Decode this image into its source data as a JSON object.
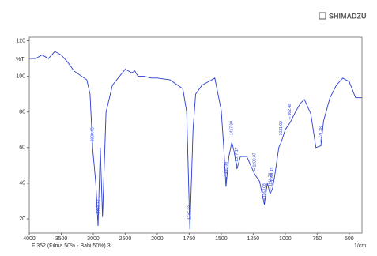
{
  "chart_data": {
    "type": "line",
    "brand": "SHIMADZU",
    "y_label": "%T",
    "x_label": "1/cm",
    "caption": "F 352 (Filma 50% - Babi 50%) 3",
    "xlim": [
      4000,
      400
    ],
    "ylim": [
      12,
      122
    ],
    "xticks": [
      4000,
      3500,
      3000,
      2500,
      2000,
      1750,
      1500,
      1250,
      1000,
      750,
      500
    ],
    "yticks": [
      20,
      40,
      60,
      80,
      100,
      120
    ],
    "series": [
      {
        "name": "F 352 (Filma 50% - Babi 50%) 3",
        "color": "#2a3cd0",
        "x": [
          4000,
          3900,
          3800,
          3700,
          3600,
          3500,
          3400,
          3300,
          3100,
          3050,
          3008,
          2960,
          2925,
          2890,
          2855,
          2800,
          2700,
          2500,
          2400,
          2350,
          2300,
          2200,
          2100,
          2000,
          1900,
          1800,
          1770,
          1745,
          1720,
          1700,
          1650,
          1600,
          1550,
          1500,
          1480,
          1463,
          1440,
          1417,
          1400,
          1377,
          1350,
          1300,
          1270,
          1238,
          1200,
          1163,
          1140,
          1118,
          1099,
          1080,
          1050,
          1031,
          1000,
          962,
          920,
          880,
          850,
          800,
          760,
          721,
          700,
          650,
          600,
          550,
          500,
          450,
          400
        ],
        "values": [
          110,
          110,
          112,
          110,
          114,
          112,
          108,
          103,
          98,
          90,
          59,
          40,
          16,
          60,
          21,
          80,
          95,
          104,
          102,
          103,
          100,
          100,
          99,
          99,
          98,
          93,
          80,
          14,
          70,
          90,
          95,
          97,
          99,
          81,
          60,
          38,
          55,
          63,
          58,
          48,
          55,
          55,
          50,
          45,
          41,
          28,
          40,
          34,
          37,
          45,
          60,
          63,
          70,
          74,
          80,
          85,
          87,
          79,
          60,
          61,
          75,
          88,
          95,
          99,
          97,
          88,
          88
        ]
      }
    ],
    "peak_labels": [
      {
        "value": 3008.45,
        "label": "3008.45"
      },
      {
        "value": 2922.72,
        "label": "2922.72"
      },
      {
        "value": 1745.58,
        "label": "1745.58"
      },
      {
        "value": 1460.35,
        "label": "1460.35"
      },
      {
        "value": 1417,
        "label": "1417.00"
      },
      {
        "value": 1377.17,
        "label": "1377.17"
      },
      {
        "value": 1238.37,
        "label": "1238.37"
      },
      {
        "value": 1163.08,
        "label": "1163.08"
      },
      {
        "value": 1116.78,
        "label": "1116.78"
      },
      {
        "value": 1099.43,
        "label": "1099.43"
      },
      {
        "value": 1031.92,
        "label": "1031.92"
      },
      {
        "value": 962.48,
        "label": "962.48"
      },
      {
        "value": 721.38,
        "label": "721.38"
      }
    ]
  }
}
